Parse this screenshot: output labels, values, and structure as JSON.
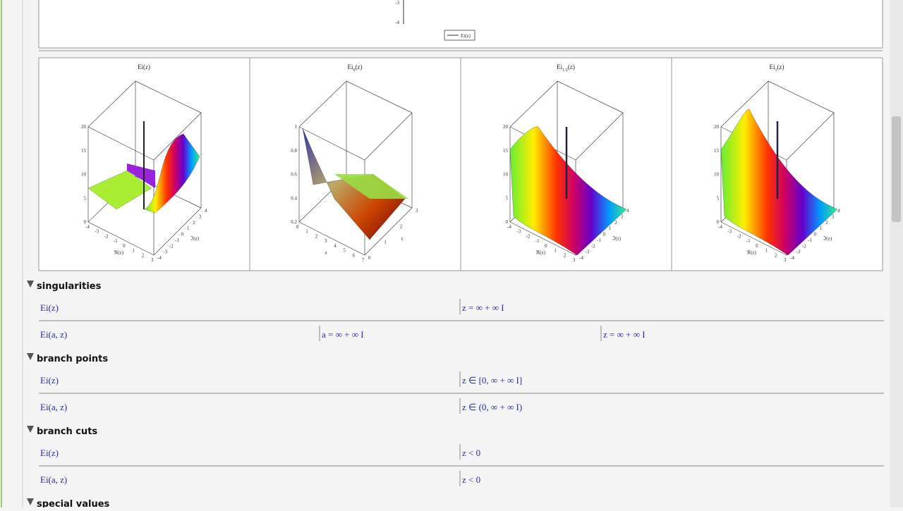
{
  "top_plot": {
    "yticks": [
      "-3",
      "-4"
    ],
    "legend": "Ei(z)"
  },
  "plots": [
    {
      "title": {
        "main": "Ei",
        "sub": "",
        "arg": "(z)"
      },
      "zticks": [
        "20",
        "15",
        "10",
        "5",
        "0"
      ],
      "xticks": [
        "-4",
        "-3",
        "-2",
        "-1",
        "0",
        "1",
        "2",
        "3"
      ],
      "yticks": [
        "-4",
        "-3",
        "-2",
        "-1",
        "0",
        "1",
        "2",
        "3",
        "4"
      ],
      "xlabel": "ℜ(z)",
      "ylabel": "ℑ(z)"
    },
    {
      "title": {
        "main": "Ei",
        "sub": "0",
        "arg": "(z)"
      },
      "zticks": [
        "1",
        "0.8",
        "0.6",
        "0.4",
        "0.2"
      ],
      "xticks": [
        "0",
        "1",
        "2",
        "3",
        "4",
        "5",
        "6",
        "7"
      ],
      "yticks": [
        "0",
        "1",
        "2",
        "3"
      ],
      "xlabel": "a",
      "ylabel": "z"
    },
    {
      "title": {
        "main": "Ei",
        "sub": "1/2",
        "arg": "(z)"
      },
      "zticks": [
        "20",
        "15",
        "10",
        "5",
        "0"
      ],
      "xticks": [
        "-4",
        "-3",
        "-2",
        "-1",
        "0",
        "1",
        "2",
        "3"
      ],
      "yticks": [
        "-4",
        "-3",
        "-2",
        "-1",
        "0",
        "1",
        "2",
        "3",
        "4"
      ],
      "xlabel": "ℜ(z)",
      "ylabel": "ℑ(z)"
    },
    {
      "title": {
        "main": "Ei",
        "sub": "1",
        "arg": "(z)"
      },
      "zticks": [
        "20",
        "15",
        "10",
        "5",
        "0"
      ],
      "xticks": [
        "-4",
        "-3",
        "-2",
        "-1",
        "0",
        "1",
        "2",
        "3"
      ],
      "yticks": [
        "-4",
        "-3",
        "-2",
        "-1",
        "0",
        "1",
        "2",
        "3",
        "4"
      ],
      "xlabel": "ℜ(z)",
      "ylabel": "ℑ(z)"
    }
  ],
  "sections": [
    {
      "title": "singularities",
      "rows": [
        [
          "Ei(z)",
          "z = ∞ + ∞ I"
        ],
        [
          "Ei(a, z)",
          "a = ∞ + ∞ I",
          "z = ∞ + ∞ I"
        ]
      ]
    },
    {
      "title": "branch points",
      "rows": [
        [
          "Ei(z)",
          "z ∈ [0, ∞ + ∞ I]"
        ],
        [
          "Ei(a, z)",
          "z ∈ (0, ∞ + ∞ I)"
        ]
      ]
    },
    {
      "title": "branch cuts",
      "rows": [
        [
          "Ei(z)",
          "z < 0"
        ],
        [
          "Ei(a, z)",
          "z < 0"
        ]
      ]
    },
    {
      "title": "special values",
      "rows": []
    }
  ]
}
